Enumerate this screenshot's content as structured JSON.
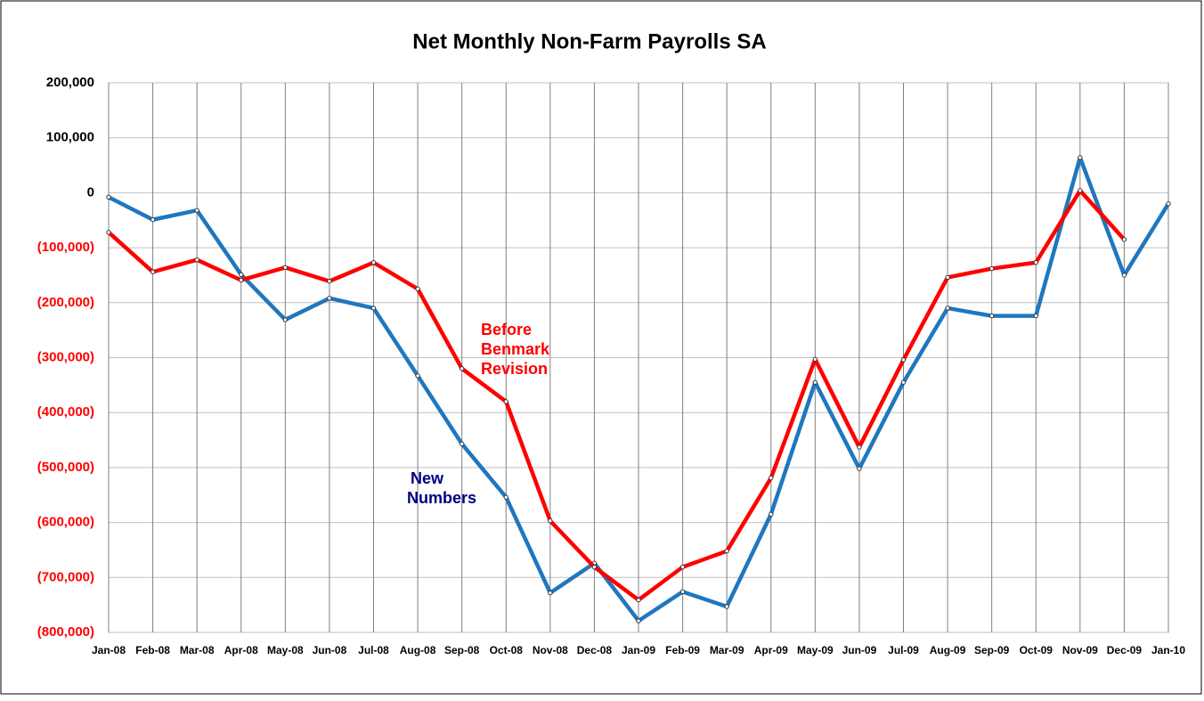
{
  "chart_data": {
    "type": "line",
    "title": "Net Monthly Non-Farm Payrolls SA",
    "categories": [
      "Jan-08",
      "Feb-08",
      "Mar-08",
      "Apr-08",
      "May-08",
      "Jun-08",
      "Jul-08",
      "Aug-08",
      "Sep-08",
      "Oct-08",
      "Nov-08",
      "Dec-08",
      "Jan-09",
      "Feb-09",
      "Mar-09",
      "Apr-09",
      "May-09",
      "Jun-09",
      "Jul-09",
      "Aug-09",
      "Sep-09",
      "Oct-09",
      "Nov-09",
      "Dec-09",
      "Jan-10"
    ],
    "series": [
      {
        "color": "#1f77bf",
        "values": [
          -8000,
          -49000,
          -32000,
          -149000,
          -231000,
          -192000,
          -210000,
          -333000,
          -457000,
          -554000,
          -728000,
          -674000,
          -779000,
          -726000,
          -753000,
          -585000,
          -345000,
          -502000,
          -345000,
          -210000,
          -224000,
          -224000,
          64000,
          -150000,
          -20000
        ]
      },
      {
        "color": "#ff0000",
        "values": [
          -72000,
          -144000,
          -122000,
          -159000,
          -136000,
          -161000,
          -127000,
          -175000,
          -320000,
          -380000,
          -597000,
          -681000,
          -741000,
          -681000,
          -652000,
          -519000,
          -303000,
          -463000,
          -304000,
          -154000,
          -138000,
          -127000,
          4000,
          -85000,
          null
        ]
      }
    ],
    "annotations": [
      {
        "lines": [
          "Before",
          "Benmark",
          "Revision"
        ],
        "color": "#ff0000"
      },
      {
        "lines": [
          "New",
          "Numbers"
        ],
        "color": "#000080"
      }
    ],
    "ylim": [
      -800000,
      200000
    ],
    "yticks": [
      {
        "value": -800000,
        "label": "(800,000)"
      },
      {
        "value": -700000,
        "label": "(700,000)"
      },
      {
        "value": -600000,
        "label": "(600,000)"
      },
      {
        "value": -500000,
        "label": "(500,000)"
      },
      {
        "value": -400000,
        "label": "(400,000)"
      },
      {
        "value": -300000,
        "label": "(300,000)"
      },
      {
        "value": -200000,
        "label": "(200,000)"
      },
      {
        "value": -100000,
        "label": "(100,000)"
      },
      0,
      {
        "value": 100000,
        "label": "100,000"
      },
      {
        "value": 200000,
        "label": "200,000"
      }
    ],
    "negative_tick_color": "#ff0000",
    "grid": true
  }
}
